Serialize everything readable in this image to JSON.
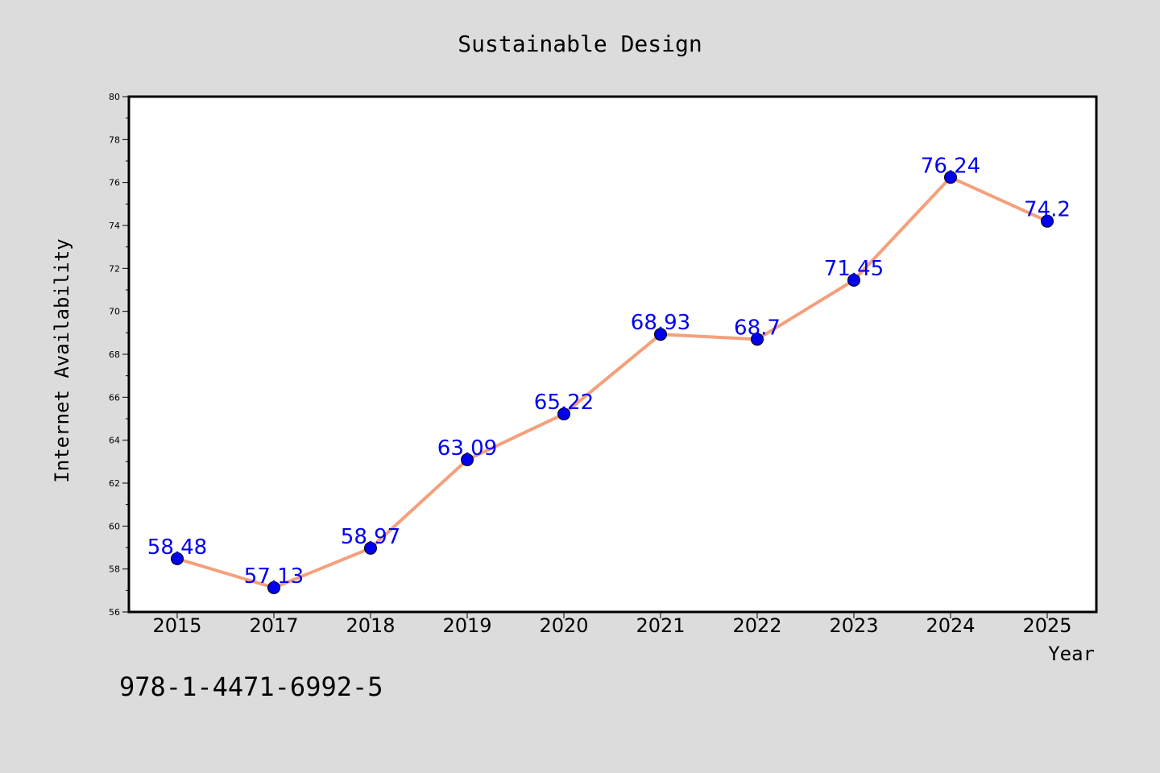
{
  "chart_data": {
    "type": "line",
    "title": "Sustainable Design",
    "xlabel": "Year",
    "ylabel": "Internet Availability",
    "categories": [
      "2015",
      "2017",
      "2018",
      "2019",
      "2020",
      "2021",
      "2022",
      "2023",
      "2024",
      "2025"
    ],
    "series": [
      {
        "values": [
          58.48,
          57.13,
          58.97,
          63.09,
          65.22,
          68.93,
          68.7,
          71.45,
          76.24,
          74.2
        ],
        "line_color": "#f4a07c",
        "marker_color": "#0000ee",
        "label_color": "#0000ee"
      }
    ],
    "data_labels": [
      "58.48",
      "57.13",
      "58.97",
      "63.09",
      "65.22",
      "68.93",
      "68.7",
      "71.45",
      "76.24",
      "74.2"
    ],
    "ylim": [
      56,
      80
    ],
    "yticks": [
      "56",
      "58",
      "60",
      "62",
      "64",
      "66",
      "68",
      "70",
      "72",
      "74",
      "76",
      "78",
      "80"
    ],
    "grid": false,
    "legend": "none"
  },
  "footer": {
    "isbn": "978-1-4471-6992-5"
  },
  "colors": {
    "background": "#dcdcdc",
    "plot_background": "#ffffff",
    "axis": "#000000"
  }
}
